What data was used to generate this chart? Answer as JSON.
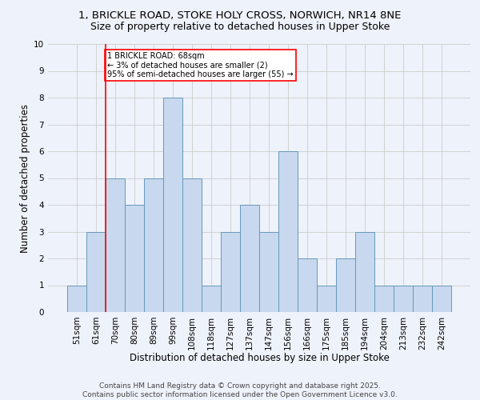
{
  "title_line1": "1, BRICKLE ROAD, STOKE HOLY CROSS, NORWICH, NR14 8NE",
  "title_line2": "Size of property relative to detached houses in Upper Stoke",
  "xlabel": "Distribution of detached houses by size in Upper Stoke",
  "ylabel": "Number of detached properties",
  "categories": [
    "51sqm",
    "61sqm",
    "70sqm",
    "80sqm",
    "89sqm",
    "99sqm",
    "108sqm",
    "118sqm",
    "127sqm",
    "137sqm",
    "147sqm",
    "156sqm",
    "166sqm",
    "175sqm",
    "185sqm",
    "194sqm",
    "204sqm",
    "213sqm",
    "232sqm",
    "242sqm"
  ],
  "values": [
    1,
    3,
    5,
    4,
    5,
    8,
    5,
    1,
    3,
    4,
    3,
    6,
    2,
    1,
    2,
    3,
    1,
    1,
    1,
    1
  ],
  "bar_color": "#c8d8ee",
  "bar_edge_color": "#6699bb",
  "red_line_index": 1.5,
  "annotation_text": "1 BRICKLE ROAD: 68sqm\n← 3% of detached houses are smaller (2)\n95% of semi-detached houses are larger (55) →",
  "annotation_box_color": "white",
  "annotation_box_edge_color": "red",
  "red_line_color": "red",
  "ylim_max": 10,
  "yticks": [
    0,
    1,
    2,
    3,
    4,
    5,
    6,
    7,
    8,
    9,
    10
  ],
  "grid_color": "#cccccc",
  "background_color": "#eef2fa",
  "footer_line1": "Contains HM Land Registry data © Crown copyright and database right 2025.",
  "footer_line2": "Contains public sector information licensed under the Open Government Licence v3.0.",
  "title_fontsize": 9.5,
  "subtitle_fontsize": 9,
  "axis_label_fontsize": 8.5,
  "tick_fontsize": 7.5,
  "annotation_fontsize": 7,
  "footer_fontsize": 6.5
}
